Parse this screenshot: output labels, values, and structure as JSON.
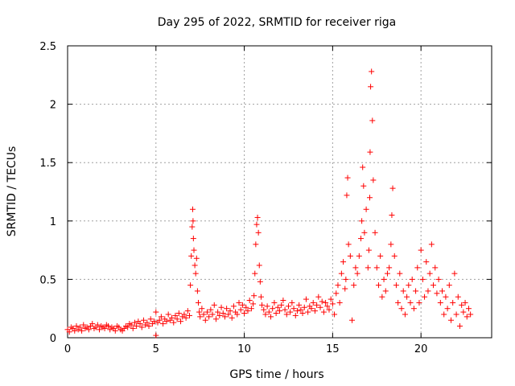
{
  "chart_data": {
    "type": "scatter",
    "title": "Day 295 of 2022, SRMTID for receiver riga",
    "xlabel": "GPS time / hours",
    "ylabel": "SRMTID / TECUs",
    "xlim": [
      0,
      24
    ],
    "ylim": [
      0,
      2.5
    ],
    "x_ticks": [
      0,
      5,
      10,
      15,
      20
    ],
    "x_tick_labels": [
      "0",
      "5",
      "10",
      "15",
      "20"
    ],
    "y_ticks": [
      0,
      0.5,
      1,
      1.5,
      2,
      2.5
    ],
    "y_tick_labels": [
      "0",
      "0.5",
      "1",
      "1.5",
      "2",
      "2.5"
    ],
    "grid": true,
    "marker": "plus",
    "color": "#ff0000",
    "series": [
      {
        "name": "SRMTID",
        "x": [
          0.0,
          0.1,
          0.2,
          0.3,
          0.4,
          0.5,
          0.6,
          0.7,
          0.8,
          0.9,
          1.0,
          1.1,
          1.2,
          1.3,
          1.4,
          1.5,
          1.6,
          1.7,
          1.8,
          1.9,
          2.0,
          2.1,
          2.2,
          2.3,
          2.4,
          2.5,
          2.6,
          2.7,
          2.8,
          2.9,
          3.0,
          3.1,
          3.2,
          3.3,
          3.4,
          3.5,
          3.6,
          3.7,
          3.8,
          3.9,
          4.0,
          4.1,
          4.2,
          4.3,
          4.4,
          4.5,
          4.6,
          4.7,
          4.8,
          4.9,
          5.0,
          5.0,
          5.1,
          5.2,
          5.3,
          5.4,
          5.5,
          5.6,
          5.7,
          5.8,
          5.9,
          6.0,
          6.1,
          6.2,
          6.3,
          6.4,
          6.5,
          6.6,
          6.7,
          6.8,
          6.9,
          6.95,
          7.0,
          7.05,
          7.08,
          7.1,
          7.12,
          7.15,
          7.2,
          7.25,
          7.3,
          7.35,
          7.4,
          7.45,
          7.5,
          7.6,
          7.7,
          7.8,
          7.9,
          8.0,
          8.1,
          8.2,
          8.3,
          8.4,
          8.5,
          8.6,
          8.7,
          8.8,
          8.9,
          9.0,
          9.1,
          9.2,
          9.3,
          9.4,
          9.5,
          9.6,
          9.7,
          9.8,
          9.9,
          10.0,
          10.1,
          10.2,
          10.3,
          10.4,
          10.5,
          10.55,
          10.6,
          10.65,
          10.7,
          10.75,
          10.8,
          10.85,
          10.9,
          10.95,
          11.0,
          11.1,
          11.2,
          11.3,
          11.4,
          11.5,
          11.6,
          11.7,
          11.8,
          11.9,
          12.0,
          12.1,
          12.2,
          12.3,
          12.4,
          12.5,
          12.6,
          12.7,
          12.8,
          12.9,
          13.0,
          13.1,
          13.2,
          13.3,
          13.4,
          13.5,
          13.6,
          13.7,
          13.8,
          13.9,
          14.0,
          14.1,
          14.2,
          14.3,
          14.4,
          14.5,
          14.6,
          14.7,
          14.8,
          14.9,
          15.0,
          15.1,
          15.2,
          15.3,
          15.4,
          15.5,
          15.6,
          15.7,
          15.75,
          15.8,
          15.85,
          15.9,
          16.0,
          16.1,
          16.2,
          16.3,
          16.4,
          16.5,
          16.6,
          16.65,
          16.7,
          16.75,
          16.8,
          16.9,
          17.0,
          17.05,
          17.1,
          17.12,
          17.15,
          17.2,
          17.25,
          17.3,
          17.4,
          17.5,
          17.6,
          17.7,
          17.8,
          17.9,
          18.0,
          18.1,
          18.2,
          18.3,
          18.35,
          18.4,
          18.5,
          18.6,
          18.7,
          18.8,
          18.9,
          19.0,
          19.1,
          19.2,
          19.3,
          19.4,
          19.5,
          19.6,
          19.7,
          19.8,
          19.9,
          20.0,
          20.1,
          20.2,
          20.3,
          20.4,
          20.5,
          20.6,
          20.7,
          20.8,
          20.9,
          21.0,
          21.1,
          21.2,
          21.3,
          21.4,
          21.5,
          21.6,
          21.7,
          21.8,
          21.9,
          22.0,
          22.1,
          22.2,
          22.3,
          22.4,
          22.5,
          22.6,
          22.7,
          22.8
        ],
        "y": [
          0.07,
          0.05,
          0.09,
          0.08,
          0.06,
          0.1,
          0.07,
          0.09,
          0.06,
          0.11,
          0.08,
          0.09,
          0.07,
          0.1,
          0.12,
          0.08,
          0.09,
          0.11,
          0.07,
          0.1,
          0.09,
          0.08,
          0.11,
          0.1,
          0.07,
          0.09,
          0.08,
          0.06,
          0.1,
          0.09,
          0.07,
          0.06,
          0.08,
          0.1,
          0.09,
          0.12,
          0.11,
          0.08,
          0.13,
          0.1,
          0.14,
          0.12,
          0.09,
          0.15,
          0.11,
          0.13,
          0.1,
          0.16,
          0.12,
          0.14,
          0.02,
          0.22,
          0.13,
          0.15,
          0.18,
          0.12,
          0.16,
          0.14,
          0.2,
          0.15,
          0.17,
          0.13,
          0.19,
          0.16,
          0.21,
          0.14,
          0.18,
          0.2,
          0.17,
          0.23,
          0.19,
          0.45,
          0.7,
          0.95,
          1.1,
          1.0,
          0.85,
          0.75,
          0.62,
          0.55,
          0.68,
          0.4,
          0.3,
          0.22,
          0.18,
          0.25,
          0.2,
          0.15,
          0.22,
          0.18,
          0.24,
          0.2,
          0.28,
          0.16,
          0.22,
          0.19,
          0.26,
          0.21,
          0.18,
          0.25,
          0.2,
          0.23,
          0.17,
          0.27,
          0.22,
          0.2,
          0.3,
          0.24,
          0.28,
          0.21,
          0.26,
          0.23,
          0.32,
          0.25,
          0.29,
          0.36,
          0.55,
          0.8,
          0.97,
          1.03,
          0.9,
          0.62,
          0.48,
          0.35,
          0.28,
          0.24,
          0.2,
          0.27,
          0.22,
          0.18,
          0.25,
          0.3,
          0.21,
          0.26,
          0.23,
          0.28,
          0.32,
          0.24,
          0.2,
          0.27,
          0.22,
          0.3,
          0.25,
          0.19,
          0.23,
          0.28,
          0.24,
          0.21,
          0.26,
          0.33,
          0.22,
          0.27,
          0.25,
          0.3,
          0.23,
          0.28,
          0.35,
          0.26,
          0.31,
          0.22,
          0.3,
          0.27,
          0.24,
          0.33,
          0.29,
          0.2,
          0.38,
          0.45,
          0.3,
          0.55,
          0.65,
          0.42,
          0.5,
          1.22,
          1.37,
          0.8,
          0.7,
          0.15,
          0.45,
          0.6,
          0.55,
          0.7,
          0.85,
          1.0,
          1.46,
          1.3,
          0.9,
          1.1,
          0.6,
          0.75,
          1.2,
          1.59,
          2.15,
          2.28,
          1.86,
          1.35,
          0.9,
          0.6,
          0.45,
          0.7,
          0.35,
          0.5,
          0.4,
          0.55,
          0.6,
          0.8,
          1.05,
          1.28,
          0.7,
          0.45,
          0.3,
          0.55,
          0.25,
          0.4,
          0.2,
          0.35,
          0.45,
          0.3,
          0.5,
          0.25,
          0.4,
          0.6,
          0.3,
          0.75,
          0.5,
          0.35,
          0.65,
          0.4,
          0.55,
          0.8,
          0.45,
          0.6,
          0.38,
          0.5,
          0.3,
          0.4,
          0.2,
          0.35,
          0.25,
          0.45,
          0.15,
          0.3,
          0.55,
          0.2,
          0.35,
          0.1,
          0.28,
          0.22,
          0.3,
          0.18,
          0.25,
          0.2
        ]
      }
    ]
  }
}
